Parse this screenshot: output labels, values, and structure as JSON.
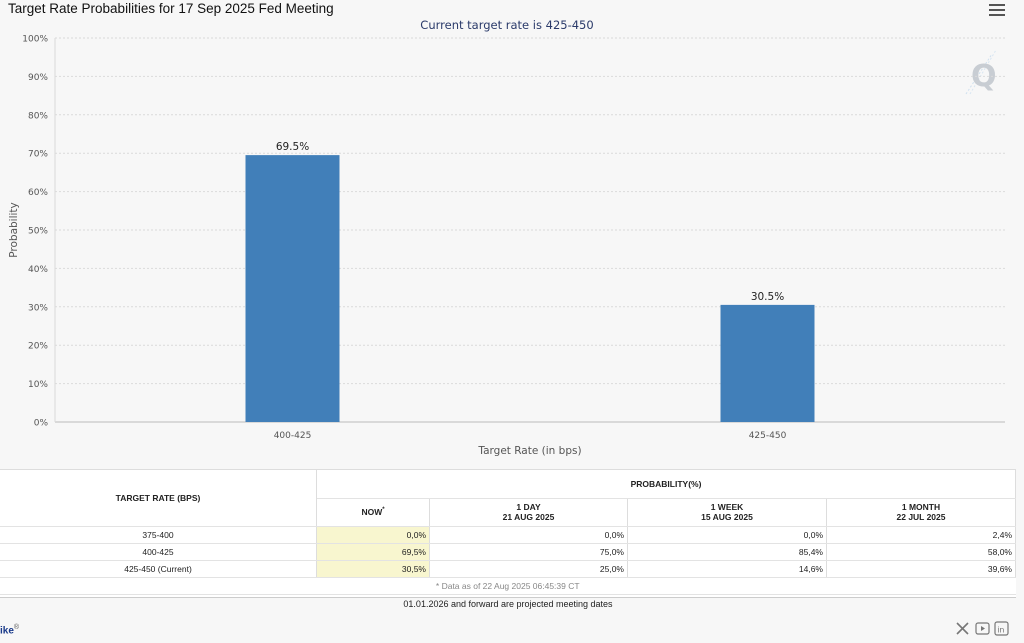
{
  "chart_title": "Target Rate Probabilities for 17 Sep 2025 Fed Meeting",
  "chart_subtitle": "Current target rate is 425-450",
  "chart_data": {
    "type": "bar",
    "title": "Target Rate Probabilities for 17 Sep 2025 Fed Meeting",
    "subtitle": "Current target rate is 425-450",
    "xlabel": "Target Rate (in bps)",
    "ylabel": "Probability",
    "categories": [
      "400-425",
      "425-450"
    ],
    "values": [
      69.5,
      30.5
    ],
    "data_labels": [
      "69.5%",
      "30.5%"
    ],
    "ylim": [
      0,
      100
    ],
    "yticks": [
      "0%",
      "10%",
      "20%",
      "30%",
      "40%",
      "50%",
      "60%",
      "70%",
      "80%",
      "90%",
      "100%"
    ],
    "grid": true,
    "bar_color": "#417fb9"
  },
  "table": {
    "col_target": "TARGET RATE (BPS)",
    "col_probability": "PROBABILITY(%)",
    "now_label": "NOW",
    "now_marker": "*",
    "day_label": "1 DAY",
    "day_date": "21 AUG 2025",
    "week_label": "1 WEEK",
    "week_date": "15 AUG 2025",
    "month_label": "1 MONTH",
    "month_date": "22 JUL 2025",
    "rows": [
      {
        "rate": "375-400",
        "now": "0,0%",
        "day": "0,0%",
        "week": "0,0%",
        "month": "2,4%"
      },
      {
        "rate": "400-425",
        "now": "69,5%",
        "day": "75,0%",
        "week": "85,4%",
        "month": "58,0%"
      },
      {
        "rate": "425-450 (Current)",
        "now": "30,5%",
        "day": "25,0%",
        "week": "14,6%",
        "month": "39,6%"
      }
    ],
    "data_note": "* Data as of 22 Aug 2025 06:45:39 CT"
  },
  "footer_note": "01.01.2026 and forward are projected meeting dates",
  "bottom_left_text": "ike",
  "bottom_left_sup": "®",
  "social_icons": [
    "x-icon",
    "youtube-icon",
    "linkedin-icon"
  ]
}
